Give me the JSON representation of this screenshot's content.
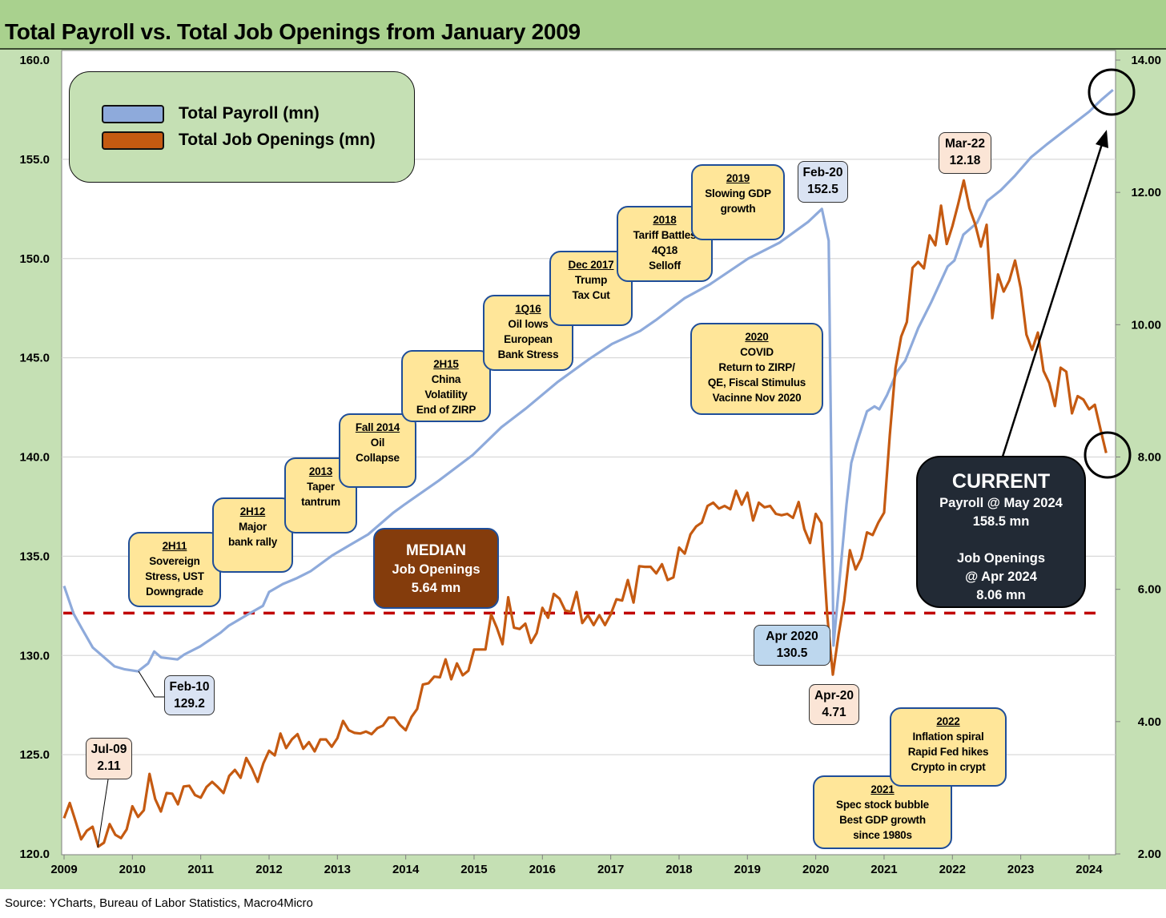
{
  "title": "Total Payroll vs. Total Job Openings from January 2009",
  "source": "Source: YCharts, Bureau of Labor Statistics, Macro4Micro",
  "colors": {
    "payroll": "#8eaadb",
    "openings": "#c55a11",
    "median_line": "#c00000",
    "background": "#c5e0b4",
    "title_band": "#a9d18e",
    "annotation_fill": "#ffe699",
    "median_box": "#843c0c",
    "current_box": "#222a35"
  },
  "legend": {
    "payroll": "Total Payroll (mn)",
    "openings": "Total Job Openings (mn)"
  },
  "annotations": {
    "h2_2011": {
      "title": "2H11",
      "body": "Sovereign\nStress, UST\nDowngrade"
    },
    "h2_2012": {
      "title": "2H12",
      "body": "Major\nbank rally"
    },
    "y2013": {
      "title": "2013",
      "body": "Taper\ntantrum"
    },
    "fall2014": {
      "title": "Fall 2014",
      "body": "Oil\nCollapse"
    },
    "h2_2015": {
      "title": "2H15",
      "body": "China\nVolatility\nEnd of ZIRP"
    },
    "q1_2016": {
      "title": "1Q16",
      "body": "Oil lows\nEuropean\nBank Stress"
    },
    "dec2017": {
      "title": "Dec 2017",
      "body": "Trump\nTax Cut"
    },
    "y2018": {
      "title": "2018",
      "body": "Tariff Battles\n4Q18\nSelloff"
    },
    "y2019": {
      "title": "2019",
      "body": "Slowing GDP\ngrowth"
    },
    "y2020": {
      "title": "2020",
      "body": "COVID\nReturn to ZIRP/\nQE, Fiscal Stimulus\nVacinne Nov 2020"
    },
    "y2021": {
      "title": "2021",
      "body": "Spec stock bubble\nBest GDP growth\nsince 1980s"
    },
    "y2022": {
      "title": "2022",
      "body": "Inflation spiral\nRapid Fed hikes\nCrypto in crypt"
    }
  },
  "callouts": {
    "feb20": "Feb-20\n152.5",
    "feb10": "Feb-10\n129.2",
    "jul09": "Jul-09\n2.11",
    "apr2020_payroll": "Apr 2020\n130.5",
    "apr20_openings": "Apr-20\n4.71",
    "mar22": "Mar-22\n12.18"
  },
  "median": {
    "heading": "MEDIAN",
    "body": "Job Openings\n5.64 mn"
  },
  "current": {
    "heading": "CURRENT",
    "body": "Payroll @ May 2024\n158.5 mn\n\nJob Openings\n@  Apr 2024\n8.06 mn"
  },
  "chart_data": {
    "type": "line",
    "title": "Total Payroll vs. Total Job Openings from January 2009",
    "xlabel": "",
    "x_ticks": [
      "2009",
      "2010",
      "2011",
      "2012",
      "2013",
      "2014",
      "2015",
      "2016",
      "2017",
      "2018",
      "2019",
      "2020",
      "2021",
      "2022",
      "2023",
      "2024"
    ],
    "left_axis": {
      "label": "Total Payroll (mn)",
      "range": [
        120,
        160
      ],
      "ticks": [
        "120.0",
        "125.0",
        "130.0",
        "135.0",
        "140.0",
        "145.0",
        "150.0",
        "155.0",
        "160.0"
      ]
    },
    "right_axis": {
      "label": "Total Job Openings (mn)",
      "range": [
        2,
        14
      ],
      "ticks": [
        "2.00",
        "4.00",
        "6.00",
        "8.00",
        "10.00",
        "12.00",
        "14.00"
      ]
    },
    "grid": "horizontal",
    "legend_position": "top-left",
    "series": [
      {
        "name": "Total Payroll (mn)",
        "axis": "left",
        "points": [
          [
            2009.0,
            133.5
          ],
          [
            2009.14,
            132.1
          ],
          [
            2009.27,
            131.3
          ],
          [
            2009.42,
            130.4
          ],
          [
            2009.74,
            129.45
          ],
          [
            2009.89,
            129.3
          ],
          [
            2010.08,
            129.2
          ],
          [
            2010.23,
            129.6
          ],
          [
            2010.32,
            130.2
          ],
          [
            2010.42,
            129.9
          ],
          [
            2010.66,
            129.8
          ],
          [
            2010.76,
            130.05
          ],
          [
            2010.99,
            130.45
          ],
          [
            2011.14,
            130.8
          ],
          [
            2011.29,
            131.15
          ],
          [
            2011.41,
            131.5
          ],
          [
            2011.73,
            132.15
          ],
          [
            2011.91,
            132.5
          ],
          [
            2012.0,
            133.2
          ],
          [
            2012.2,
            133.6
          ],
          [
            2012.41,
            133.9
          ],
          [
            2012.61,
            134.25
          ],
          [
            2012.93,
            135.05
          ],
          [
            2013.2,
            135.6
          ],
          [
            2013.45,
            136.1
          ],
          [
            2013.82,
            137.2
          ],
          [
            2013.98,
            137.6
          ],
          [
            2014.48,
            138.8
          ],
          [
            2014.98,
            140.1
          ],
          [
            2015.4,
            141.5
          ],
          [
            2015.76,
            142.45
          ],
          [
            2016.23,
            143.8
          ],
          [
            2016.69,
            144.95
          ],
          [
            2017.02,
            145.7
          ],
          [
            2017.43,
            146.35
          ],
          [
            2017.66,
            146.9
          ],
          [
            2018.08,
            148.0
          ],
          [
            2018.45,
            148.7
          ],
          [
            2019.01,
            150.0
          ],
          [
            2019.47,
            150.8
          ],
          [
            2019.89,
            151.85
          ],
          [
            2020.09,
            152.5
          ],
          [
            2020.19,
            150.9
          ],
          [
            2020.26,
            130.5
          ],
          [
            2020.45,
            137.6
          ],
          [
            2020.52,
            139.7
          ],
          [
            2020.6,
            140.7
          ],
          [
            2020.75,
            142.3
          ],
          [
            2020.86,
            142.55
          ],
          [
            2020.93,
            142.4
          ],
          [
            2021.04,
            143.1
          ],
          [
            2021.19,
            144.3
          ],
          [
            2021.31,
            144.85
          ],
          [
            2021.5,
            146.5
          ],
          [
            2021.69,
            147.8
          ],
          [
            2021.93,
            149.6
          ],
          [
            2022.03,
            149.9
          ],
          [
            2022.16,
            151.2
          ],
          [
            2022.36,
            151.8
          ],
          [
            2022.51,
            152.9
          ],
          [
            2022.71,
            153.45
          ],
          [
            2022.91,
            154.15
          ],
          [
            2023.15,
            155.1
          ],
          [
            2023.38,
            155.75
          ],
          [
            2023.68,
            156.55
          ],
          [
            2024.0,
            157.4
          ],
          [
            2024.18,
            158.0
          ],
          [
            2024.35,
            158.5
          ]
        ]
      },
      {
        "name": "Total Job Openings (mn)",
        "axis": "right",
        "start": "2009-01",
        "frequency": "monthly",
        "values": [
          2.54,
          2.77,
          2.5,
          2.22,
          2.35,
          2.41,
          2.11,
          2.17,
          2.45,
          2.29,
          2.24,
          2.37,
          2.72,
          2.56,
          2.66,
          3.21,
          2.83,
          2.64,
          2.92,
          2.91,
          2.75,
          3.02,
          3.03,
          2.89,
          2.85,
          3.01,
          3.09,
          3.01,
          2.92,
          3.18,
          3.27,
          3.15,
          3.45,
          3.29,
          3.09,
          3.37,
          3.56,
          3.49,
          3.82,
          3.6,
          3.73,
          3.81,
          3.59,
          3.69,
          3.55,
          3.73,
          3.73,
          3.62,
          3.75,
          4.01,
          3.87,
          3.83,
          3.82,
          3.85,
          3.81,
          3.9,
          3.94,
          4.06,
          4.06,
          3.95,
          3.87,
          4.07,
          4.19,
          4.56,
          4.58,
          4.68,
          4.67,
          4.94,
          4.64,
          4.88,
          4.7,
          4.77,
          5.09,
          5.09,
          5.09,
          5.62,
          5.42,
          5.17,
          5.88,
          5.42,
          5.4,
          5.48,
          5.19,
          5.34,
          5.72,
          5.57,
          5.93,
          5.86,
          5.68,
          5.66,
          5.96,
          5.49,
          5.61,
          5.46,
          5.61,
          5.46,
          5.62,
          5.85,
          5.83,
          6.14,
          5.8,
          6.35,
          6.34,
          6.34,
          6.24,
          6.38,
          6.14,
          6.18,
          6.63,
          6.54,
          6.83,
          6.95,
          7.01,
          7.26,
          7.31,
          7.22,
          7.26,
          7.21,
          7.49,
          7.28,
          7.46,
          7.04,
          7.31,
          7.24,
          7.26,
          7.14,
          7.12,
          7.14,
          7.08,
          7.32,
          6.91,
          6.7,
          7.14,
          7.0,
          5.62,
          4.71,
          5.31,
          5.83,
          6.59,
          6.3,
          6.47,
          6.86,
          6.82,
          7.01,
          7.16,
          8.33,
          9.34,
          9.82,
          10.04,
          10.86,
          10.95,
          10.85,
          11.35,
          11.2,
          11.8,
          11.22,
          11.49,
          11.82,
          12.18,
          11.76,
          11.52,
          11.18,
          11.51,
          10.1,
          10.76,
          10.5,
          10.67,
          10.97,
          10.55,
          9.85,
          9.62,
          9.88,
          9.3,
          9.12,
          8.77,
          9.35,
          9.29,
          8.66,
          8.92,
          8.87,
          8.72,
          8.79,
          8.42,
          8.06
        ]
      }
    ],
    "reference_lines": [
      {
        "name": "Median Job Openings",
        "axis": "right",
        "value": 5.64,
        "style": "dashed"
      }
    ]
  }
}
